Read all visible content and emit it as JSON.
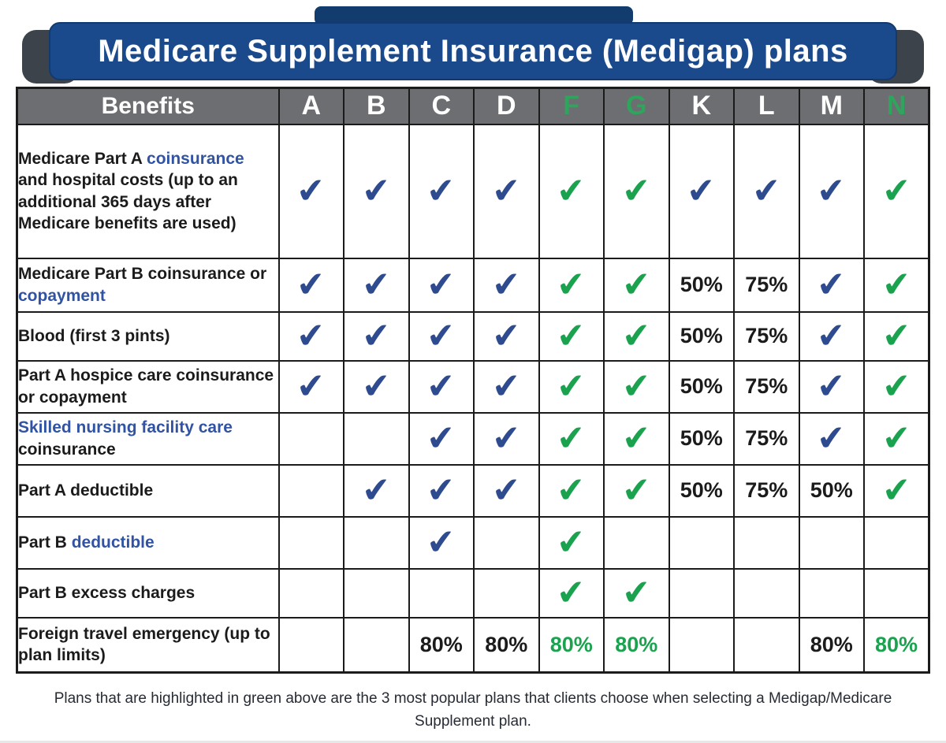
{
  "banner": {
    "title": "Medicare Supplement Insurance (Medigap) plans"
  },
  "table": {
    "benefits_header": "Benefits",
    "plan_headers": [
      {
        "label": "A",
        "highlight": false
      },
      {
        "label": "B",
        "highlight": false
      },
      {
        "label": "C",
        "highlight": false
      },
      {
        "label": "D",
        "highlight": false
      },
      {
        "label": "F",
        "highlight": true
      },
      {
        "label": "G",
        "highlight": true
      },
      {
        "label": "K",
        "highlight": false
      },
      {
        "label": "L",
        "highlight": false
      },
      {
        "label": "M",
        "highlight": false
      },
      {
        "label": "N",
        "highlight": true
      }
    ],
    "rows": [
      {
        "benefit": [
          {
            "text": "Medicare Part A "
          },
          {
            "text": "coinsurance",
            "color": "blue"
          },
          {
            "text": " and hospital costs (up to an additional 365 days after Medicare benefits are used)"
          }
        ],
        "cells": [
          {
            "check": "blue"
          },
          {
            "check": "blue"
          },
          {
            "check": "blue"
          },
          {
            "check": "blue"
          },
          {
            "check": "green"
          },
          {
            "check": "green"
          },
          {
            "check": "blue"
          },
          {
            "check": "blue"
          },
          {
            "check": "blue"
          },
          {
            "check": "green"
          }
        ]
      },
      {
        "benefit": [
          {
            "text": "Medicare Part B coinsurance or "
          },
          {
            "text": "copayment",
            "color": "blue"
          }
        ],
        "cells": [
          {
            "check": "blue"
          },
          {
            "check": "blue"
          },
          {
            "check": "blue"
          },
          {
            "check": "blue"
          },
          {
            "check": "green"
          },
          {
            "check": "green"
          },
          {
            "value": "50%"
          },
          {
            "value": "75%"
          },
          {
            "check": "blue"
          },
          {
            "check": "green"
          }
        ]
      },
      {
        "benefit": [
          {
            "text": "Blood (first 3 pints)"
          }
        ],
        "cells": [
          {
            "check": "blue"
          },
          {
            "check": "blue"
          },
          {
            "check": "blue"
          },
          {
            "check": "blue"
          },
          {
            "check": "green"
          },
          {
            "check": "green"
          },
          {
            "value": "50%"
          },
          {
            "value": "75%"
          },
          {
            "check": "blue"
          },
          {
            "check": "green"
          }
        ]
      },
      {
        "benefit": [
          {
            "text": "Part A hospice care coinsurance or copayment"
          }
        ],
        "cells": [
          {
            "check": "blue"
          },
          {
            "check": "blue"
          },
          {
            "check": "blue"
          },
          {
            "check": "blue"
          },
          {
            "check": "green"
          },
          {
            "check": "green"
          },
          {
            "value": "50%"
          },
          {
            "value": "75%"
          },
          {
            "check": "blue"
          },
          {
            "check": "green"
          }
        ]
      },
      {
        "benefit": [
          {
            "text": "Skilled nursing facility care",
            "color": "blue"
          },
          {
            "text": " coinsurance"
          }
        ],
        "cells": [
          {},
          {},
          {
            "check": "blue"
          },
          {
            "check": "blue"
          },
          {
            "check": "green"
          },
          {
            "check": "green"
          },
          {
            "value": "50%"
          },
          {
            "value": "75%"
          },
          {
            "check": "blue"
          },
          {
            "check": "green"
          }
        ]
      },
      {
        "benefit": [
          {
            "text": "Part A deductible"
          }
        ],
        "cells": [
          {},
          {
            "check": "blue"
          },
          {
            "check": "blue"
          },
          {
            "check": "blue"
          },
          {
            "check": "green"
          },
          {
            "check": "green"
          },
          {
            "value": "50%"
          },
          {
            "value": "75%"
          },
          {
            "value": "50%"
          },
          {
            "check": "green"
          }
        ]
      },
      {
        "benefit": [
          {
            "text": "Part B "
          },
          {
            "text": "deductible",
            "color": "blue"
          }
        ],
        "cells": [
          {},
          {},
          {
            "check": "blue"
          },
          {},
          {
            "check": "green"
          },
          {},
          {},
          {},
          {},
          {}
        ]
      },
      {
        "benefit": [
          {
            "text": "Part B excess charges"
          }
        ],
        "cells": [
          {},
          {},
          {},
          {},
          {
            "check": "green"
          },
          {
            "check": "green"
          },
          {},
          {},
          {},
          {}
        ]
      },
      {
        "benefit": [
          {
            "text": "Foreign travel emergency (up to plan limits)"
          }
        ],
        "cells": [
          {},
          {},
          {
            "value": "80%"
          },
          {
            "value": "80%"
          },
          {
            "value": "80%",
            "color": "green"
          },
          {
            "value": "80%",
            "color": "green"
          },
          {},
          {},
          {
            "value": "80%"
          },
          {
            "value": "80%",
            "color": "green"
          }
        ]
      }
    ]
  },
  "footer": {
    "text": "Plans that are highlighted in green above are the 3 most popular plans that clients choose when selecting a Medigap/Medicare Supplement plan."
  },
  "icons": {
    "check": "✔"
  },
  "colors": {
    "banner_blue": "#1b4a8c",
    "banner_strip": "#123c6e",
    "ear_gray": "#3c434b",
    "header_gray": "#6d6e71",
    "check_blue": "#2d4b8e",
    "green": "#1ba24f",
    "header_green": "#2fa45c",
    "link_blue": "#3053a4",
    "text_dark": "#1b1b1b"
  }
}
